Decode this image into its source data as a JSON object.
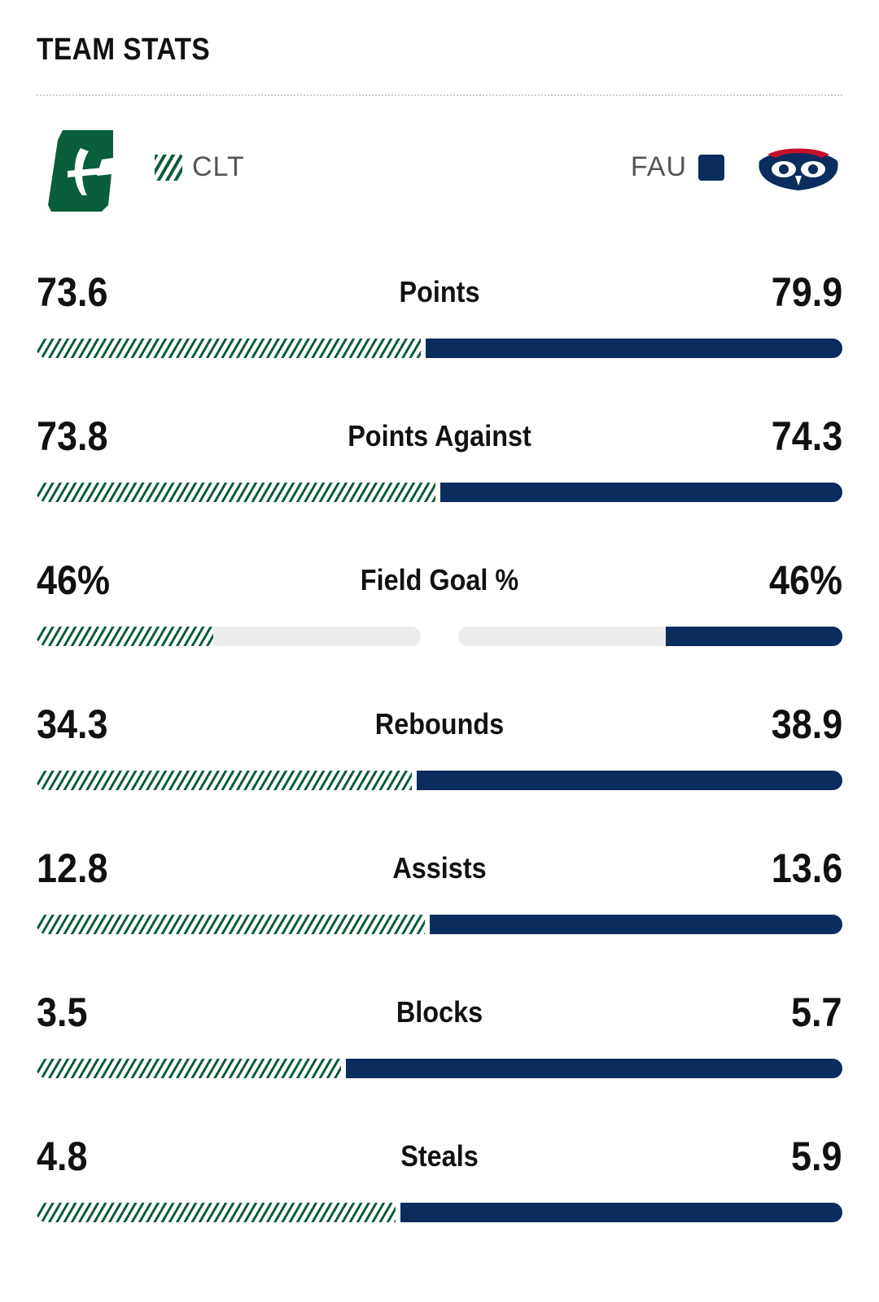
{
  "header": {
    "title": "TEAM STATS"
  },
  "teams": {
    "left": {
      "abbr": "CLT",
      "color": "#0b5e3b",
      "logo_icon": "charlotte-c-logo"
    },
    "right": {
      "abbr": "FAU",
      "color": "#0a2d5e",
      "logo_icon": "fau-owl-logo"
    }
  },
  "stats": [
    {
      "label": "Points",
      "left": "73.6",
      "right": "79.9"
    },
    {
      "label": "Points Against",
      "left": "73.8",
      "right": "74.3"
    },
    {
      "label": "Field Goal %",
      "left": "46%",
      "right": "46%"
    },
    {
      "label": "Rebounds",
      "left": "34.3",
      "right": "38.9"
    },
    {
      "label": "Assists",
      "left": "12.8",
      "right": "13.6"
    },
    {
      "label": "Blocks",
      "left": "3.5",
      "right": "5.7"
    },
    {
      "label": "Steals",
      "left": "4.8",
      "right": "5.9"
    }
  ]
}
